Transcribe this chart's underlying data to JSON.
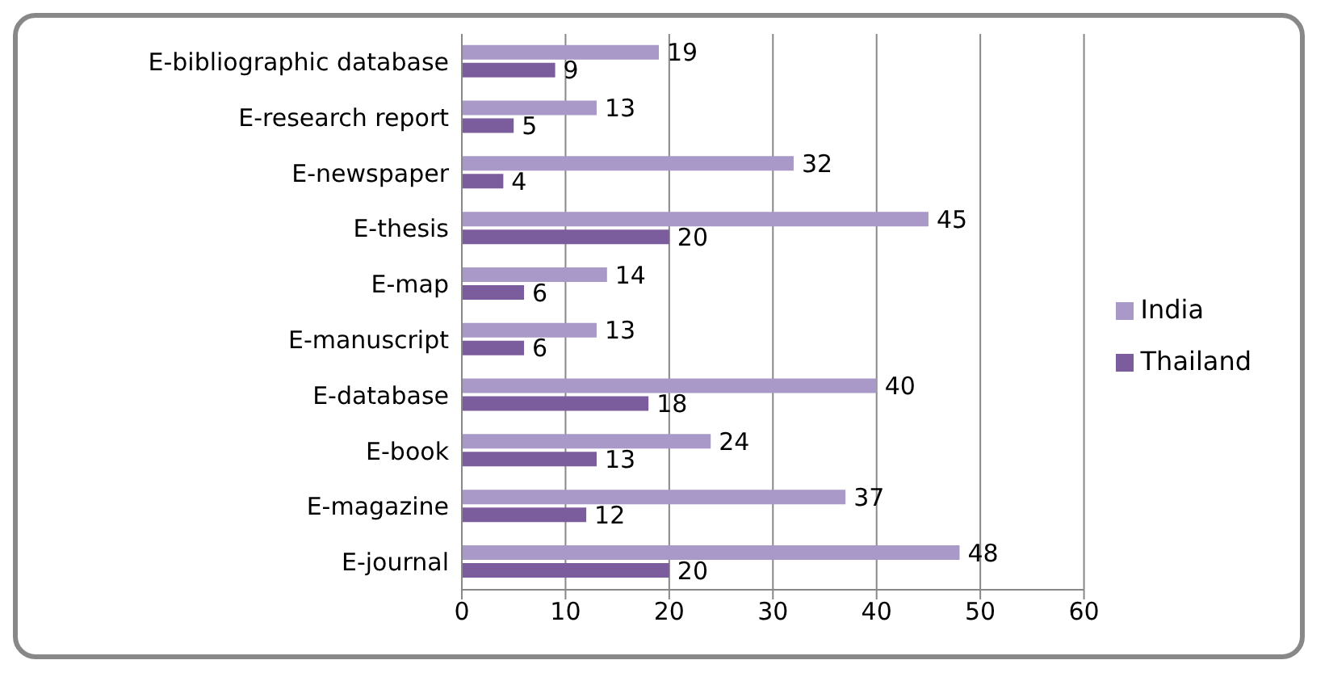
{
  "chart_data": {
    "type": "bar",
    "orientation": "horizontal",
    "categories": [
      "E-bibliographic database",
      "E-research report",
      "E-newspaper",
      "E-thesis",
      "E-map",
      "E-manuscript",
      "E-database",
      "E-book",
      "E-magazine",
      "E-journal"
    ],
    "series": [
      {
        "name": "India",
        "color": "#a899c8",
        "values": [
          19,
          13,
          32,
          45,
          14,
          13,
          40,
          24,
          37,
          48
        ]
      },
      {
        "name": "Thailand",
        "color": "#7b5c9c",
        "values": [
          9,
          5,
          4,
          20,
          6,
          6,
          18,
          13,
          12,
          20
        ]
      }
    ],
    "xlim": [
      0,
      60
    ],
    "xticks": [
      0,
      10,
      20,
      30,
      40,
      50,
      60
    ],
    "grid": "x",
    "legend": "right",
    "data_labels": true
  }
}
